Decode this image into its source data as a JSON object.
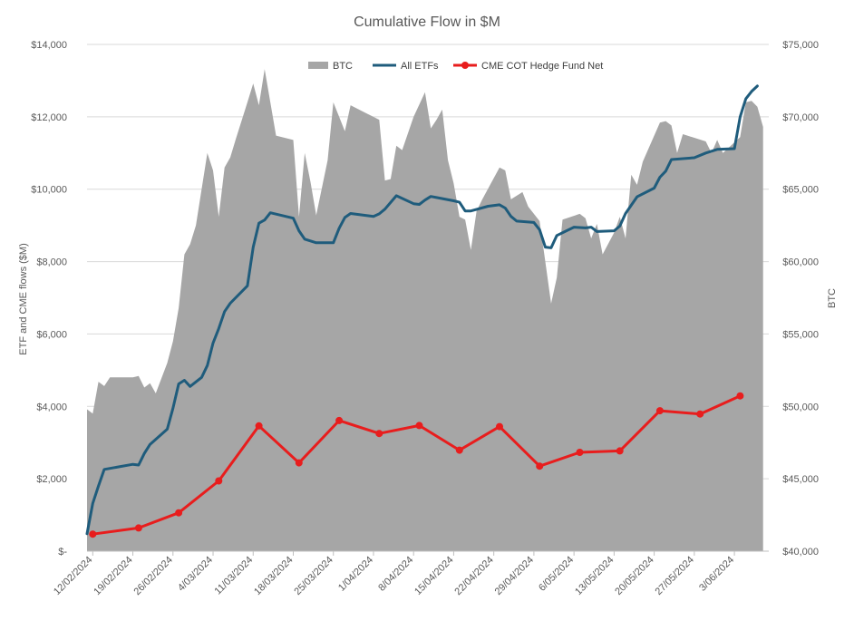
{
  "chart_data": {
    "type": "line",
    "title": "Cumulative Flow in $M",
    "ylabel_left": "ETF and CME flows ($M)",
    "ylabel_right": "BTC",
    "left_axis": {
      "min": 0,
      "max": 14000,
      "ticks": [
        0,
        2000,
        4000,
        6000,
        8000,
        10000,
        12000,
        14000
      ],
      "tick_labels": [
        "$-",
        "$2,000",
        "$4,000",
        "$6,000",
        "$8,000",
        "$10,000",
        "$12,000",
        "$14,000"
      ]
    },
    "right_axis": {
      "min": 40000,
      "max": 75000,
      "ticks": [
        40000,
        45000,
        50000,
        55000,
        60000,
        65000,
        70000,
        75000
      ],
      "tick_labels": [
        "$40,000",
        "$45,000",
        "$50,000",
        "$55,000",
        "$60,000",
        "$65,000",
        "$70,000",
        "$75,000"
      ]
    },
    "x_axis": {
      "start": "2024-02-11",
      "end": "2024-06-09",
      "ticks": [
        "2024-02-12",
        "2024-02-19",
        "2024-02-26",
        "2024-03-04",
        "2024-03-11",
        "2024-03-18",
        "2024-03-25",
        "2024-04-01",
        "2024-04-08",
        "2024-04-15",
        "2024-04-22",
        "2024-04-29",
        "2024-05-06",
        "2024-05-13",
        "2024-05-20",
        "2024-05-27",
        "2024-06-03"
      ],
      "tick_labels": [
        "12/02/2024",
        "19/02/2024",
        "26/02/2024",
        "4/03/2024",
        "11/03/2024",
        "18/03/2024",
        "25/03/2024",
        "1/04/2024",
        "8/04/2024",
        "15/04/2024",
        "22/04/2024",
        "29/04/2024",
        "6/05/2024",
        "13/05/2024",
        "20/05/2024",
        "27/05/2024",
        "3/06/2024"
      ]
    },
    "grid": "horizontal",
    "legend_position": "top-center",
    "series": [
      {
        "name": "BTC",
        "kind": "area",
        "axis": "right",
        "color": "#a6a6a6",
        "points": [
          [
            "2024-02-11",
            49800
          ],
          [
            "2024-02-12",
            49500
          ],
          [
            "2024-02-13",
            51700
          ],
          [
            "2024-02-14",
            51400
          ],
          [
            "2024-02-15",
            52000
          ],
          [
            "2024-02-17",
            52000
          ],
          [
            "2024-02-19",
            52000
          ],
          [
            "2024-02-20",
            52100
          ],
          [
            "2024-02-21",
            51300
          ],
          [
            "2024-02-22",
            51600
          ],
          [
            "2024-02-23",
            50900
          ],
          [
            "2024-02-25",
            53000
          ],
          [
            "2024-02-26",
            54500
          ],
          [
            "2024-02-27",
            56800
          ],
          [
            "2024-02-28",
            60500
          ],
          [
            "2024-02-29",
            61200
          ],
          [
            "2024-03-01",
            62500
          ],
          [
            "2024-03-03",
            67500
          ],
          [
            "2024-03-04",
            66300
          ],
          [
            "2024-03-05",
            63100
          ],
          [
            "2024-03-06",
            66500
          ],
          [
            "2024-03-07",
            67200
          ],
          [
            "2024-03-08",
            68500
          ],
          [
            "2024-03-10",
            71000
          ],
          [
            "2024-03-11",
            72300
          ],
          [
            "2024-03-12",
            70800
          ],
          [
            "2024-03-13",
            73300
          ],
          [
            "2024-03-14",
            71000
          ],
          [
            "2024-03-15",
            68700
          ],
          [
            "2024-03-18",
            68400
          ],
          [
            "2024-03-19",
            63100
          ],
          [
            "2024-03-20",
            67500
          ],
          [
            "2024-03-21",
            65500
          ],
          [
            "2024-03-22",
            63200
          ],
          [
            "2024-03-24",
            67000
          ],
          [
            "2024-03-25",
            71000
          ],
          [
            "2024-03-26",
            70000
          ],
          [
            "2024-03-27",
            69000
          ],
          [
            "2024-03-28",
            70800
          ],
          [
            "2024-03-31",
            70200
          ],
          [
            "2024-04-02",
            69800
          ],
          [
            "2024-04-03",
            65600
          ],
          [
            "2024-04-04",
            65700
          ],
          [
            "2024-04-05",
            68000
          ],
          [
            "2024-04-06",
            67700
          ],
          [
            "2024-04-08",
            70000
          ],
          [
            "2024-04-10",
            71700
          ],
          [
            "2024-04-11",
            69200
          ],
          [
            "2024-04-12",
            69800
          ],
          [
            "2024-04-13",
            70500
          ],
          [
            "2024-04-14",
            67000
          ],
          [
            "2024-04-15",
            65400
          ],
          [
            "2024-04-16",
            63100
          ],
          [
            "2024-04-17",
            62900
          ],
          [
            "2024-04-18",
            60800
          ],
          [
            "2024-04-19",
            63500
          ],
          [
            "2024-04-20",
            64300
          ],
          [
            "2024-04-23",
            66500
          ],
          [
            "2024-04-24",
            66300
          ],
          [
            "2024-04-25",
            64300
          ],
          [
            "2024-04-27",
            64800
          ],
          [
            "2024-04-28",
            63800
          ],
          [
            "2024-04-30",
            62800
          ],
          [
            "2024-05-01",
            60000
          ],
          [
            "2024-05-02",
            57100
          ],
          [
            "2024-05-03",
            58900
          ],
          [
            "2024-05-04",
            62900
          ],
          [
            "2024-05-07",
            63300
          ],
          [
            "2024-05-08",
            63000
          ],
          [
            "2024-05-09",
            61600
          ],
          [
            "2024-05-10",
            62600
          ],
          [
            "2024-05-11",
            60500
          ],
          [
            "2024-05-13",
            62000
          ],
          [
            "2024-05-14",
            63100
          ],
          [
            "2024-05-15",
            61600
          ],
          [
            "2024-05-16",
            66000
          ],
          [
            "2024-05-17",
            65300
          ],
          [
            "2024-05-18",
            66900
          ],
          [
            "2024-05-21",
            69600
          ],
          [
            "2024-05-22",
            69700
          ],
          [
            "2024-05-23",
            69400
          ],
          [
            "2024-05-24",
            67500
          ],
          [
            "2024-05-25",
            68800
          ],
          [
            "2024-05-29",
            68300
          ],
          [
            "2024-05-30",
            67500
          ],
          [
            "2024-05-31",
            68400
          ],
          [
            "2024-06-01",
            67500
          ],
          [
            "2024-06-04",
            68600
          ],
          [
            "2024-06-05",
            71000
          ],
          [
            "2024-06-06",
            71100
          ],
          [
            "2024-06-07",
            70700
          ],
          [
            "2024-06-08",
            69300
          ]
        ]
      },
      {
        "name": "All ETFs",
        "kind": "line",
        "axis": "left",
        "color": "#1f5c7c",
        "points": [
          [
            "2024-02-11",
            480
          ],
          [
            "2024-02-12",
            1320
          ],
          [
            "2024-02-13",
            1800
          ],
          [
            "2024-02-14",
            2260
          ],
          [
            "2024-02-19",
            2400
          ],
          [
            "2024-02-20",
            2380
          ],
          [
            "2024-02-21",
            2700
          ],
          [
            "2024-02-22",
            2950
          ],
          [
            "2024-02-25",
            3370
          ],
          [
            "2024-02-26",
            3950
          ],
          [
            "2024-02-27",
            4620
          ],
          [
            "2024-02-28",
            4720
          ],
          [
            "2024-02-29",
            4550
          ],
          [
            "2024-03-02",
            4800
          ],
          [
            "2024-03-03",
            5130
          ],
          [
            "2024-03-04",
            5750
          ],
          [
            "2024-03-05",
            6150
          ],
          [
            "2024-03-06",
            6620
          ],
          [
            "2024-03-07",
            6850
          ],
          [
            "2024-03-10",
            7330
          ],
          [
            "2024-03-11",
            8400
          ],
          [
            "2024-03-12",
            9060
          ],
          [
            "2024-03-13",
            9150
          ],
          [
            "2024-03-14",
            9350
          ],
          [
            "2024-03-18",
            9200
          ],
          [
            "2024-03-19",
            8850
          ],
          [
            "2024-03-20",
            8620
          ],
          [
            "2024-03-22",
            8520
          ],
          [
            "2024-03-25",
            8520
          ],
          [
            "2024-03-26",
            8920
          ],
          [
            "2024-03-27",
            9220
          ],
          [
            "2024-03-28",
            9330
          ],
          [
            "2024-04-01",
            9250
          ],
          [
            "2024-04-02",
            9320
          ],
          [
            "2024-04-03",
            9450
          ],
          [
            "2024-04-05",
            9820
          ],
          [
            "2024-04-08",
            9600
          ],
          [
            "2024-04-09",
            9580
          ],
          [
            "2024-04-10",
            9700
          ],
          [
            "2024-04-11",
            9800
          ],
          [
            "2024-04-12",
            9770
          ],
          [
            "2024-04-15",
            9680
          ],
          [
            "2024-04-16",
            9640
          ],
          [
            "2024-04-17",
            9400
          ],
          [
            "2024-04-18",
            9400
          ],
          [
            "2024-04-21",
            9530
          ],
          [
            "2024-04-23",
            9570
          ],
          [
            "2024-04-24",
            9480
          ],
          [
            "2024-04-25",
            9250
          ],
          [
            "2024-04-26",
            9120
          ],
          [
            "2024-04-29",
            9080
          ],
          [
            "2024-04-30",
            8880
          ],
          [
            "2024-05-01",
            8400
          ],
          [
            "2024-05-02",
            8380
          ],
          [
            "2024-05-03",
            8720
          ],
          [
            "2024-05-06",
            8950
          ],
          [
            "2024-05-08",
            8930
          ],
          [
            "2024-05-09",
            8950
          ],
          [
            "2024-05-10",
            8830
          ],
          [
            "2024-05-13",
            8850
          ],
          [
            "2024-05-14",
            8980
          ],
          [
            "2024-05-15",
            9330
          ],
          [
            "2024-05-17",
            9790
          ],
          [
            "2024-05-20",
            10030
          ],
          [
            "2024-05-21",
            10330
          ],
          [
            "2024-05-22",
            10500
          ],
          [
            "2024-05-23",
            10820
          ],
          [
            "2024-05-27",
            10870
          ],
          [
            "2024-05-29",
            11000
          ],
          [
            "2024-05-31",
            11100
          ],
          [
            "2024-06-03",
            11120
          ],
          [
            "2024-06-04",
            12000
          ],
          [
            "2024-06-05",
            12500
          ],
          [
            "2024-06-06",
            12700
          ],
          [
            "2024-06-07",
            12850
          ]
        ]
      },
      {
        "name": "CME COT Hedge Fund Net",
        "kind": "line-markers",
        "axis": "left",
        "color": "#e81d1d",
        "points": [
          [
            "2024-02-12",
            470
          ],
          [
            "2024-02-20",
            640
          ],
          [
            "2024-02-27",
            1060
          ],
          [
            "2024-03-05",
            1940
          ],
          [
            "2024-03-12",
            3460
          ],
          [
            "2024-03-19",
            2440
          ],
          [
            "2024-03-26",
            3610
          ],
          [
            "2024-04-02",
            3250
          ],
          [
            "2024-04-09",
            3470
          ],
          [
            "2024-04-16",
            2790
          ],
          [
            "2024-04-23",
            3440
          ],
          [
            "2024-04-30",
            2350
          ],
          [
            "2024-05-07",
            2730
          ],
          [
            "2024-05-14",
            2770
          ],
          [
            "2024-05-21",
            3880
          ],
          [
            "2024-05-28",
            3790
          ],
          [
            "2024-06-04",
            4290
          ]
        ]
      }
    ]
  }
}
